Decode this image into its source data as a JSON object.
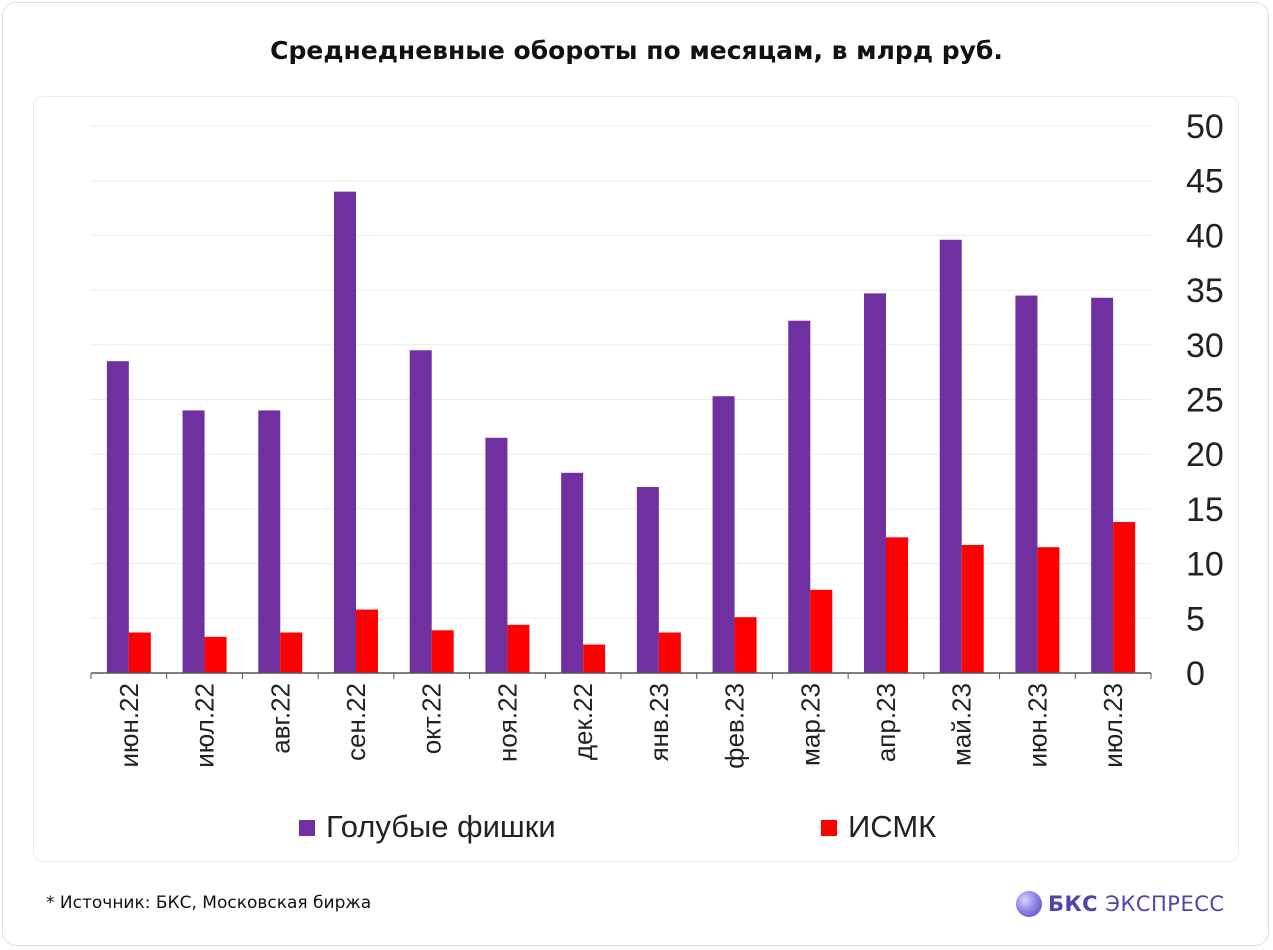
{
  "title": "Среднедневные обороты по месяцам, в млрд руб.",
  "footnote": "*  Источник: БКС, Московская биржа",
  "logo": {
    "bold": "БКС",
    "rest": "ЭКСПРЕСС",
    "icon": "bks-logo-icon",
    "color": "#4b45ad"
  },
  "chart_data": {
    "type": "bar",
    "title": "Среднедневные обороты по месяцам, в млрд руб.",
    "categories": [
      "июн.22",
      "июл.22",
      "авг.22",
      "сен.22",
      "окт.22",
      "ноя.22",
      "дек.22",
      "янв.23",
      "фев.23",
      "мар.23",
      "апр.23",
      "май.23",
      "июн.23",
      "июл.23"
    ],
    "series": [
      {
        "name": "Голубые фишки",
        "color": "#7030a0",
        "values": [
          28.5,
          24.0,
          24.0,
          44.0,
          29.5,
          21.5,
          18.3,
          17.0,
          25.3,
          32.2,
          34.7,
          39.6,
          34.5,
          34.3
        ]
      },
      {
        "name": "ИСМК",
        "color": "#ff0000",
        "values": [
          3.7,
          3.3,
          3.7,
          5.8,
          3.9,
          4.4,
          2.6,
          3.7,
          5.1,
          7.6,
          12.4,
          11.7,
          11.5,
          13.8
        ]
      }
    ],
    "ylim": [
      0,
      50
    ],
    "yticks": [
      0,
      5,
      10,
      15,
      20,
      25,
      30,
      35,
      40,
      45,
      50
    ],
    "yaxis_position": "right",
    "grid": true,
    "legend": "bottom",
    "xlabel": "",
    "ylabel": ""
  }
}
